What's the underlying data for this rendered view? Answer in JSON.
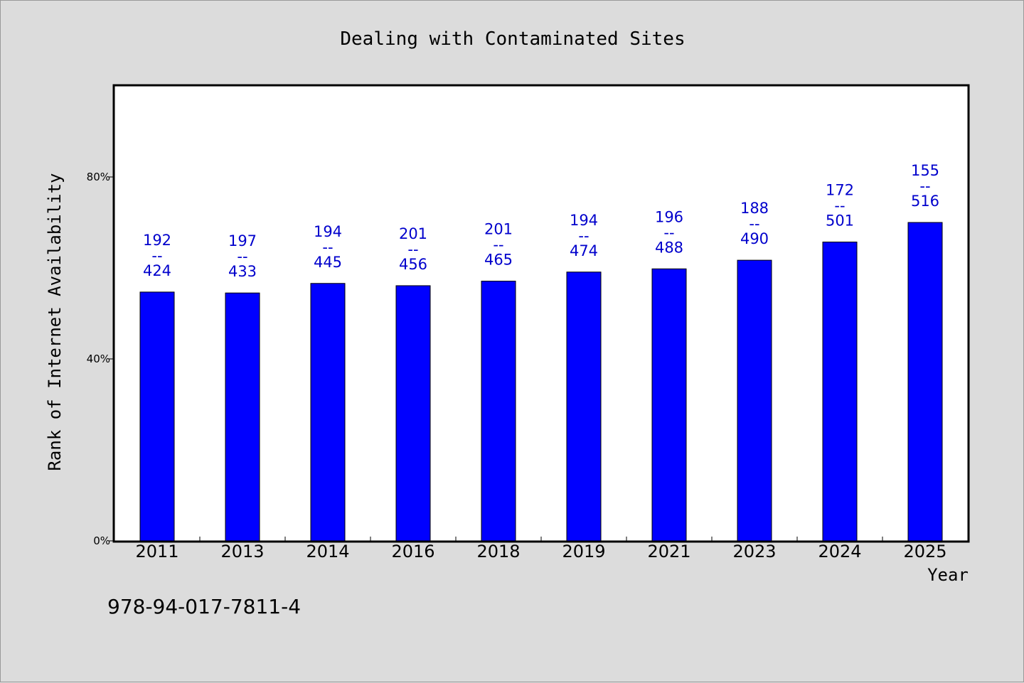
{
  "chart_data": {
    "type": "bar",
    "title": "Dealing with Contaminated Sites",
    "xlabel": "Year",
    "ylabel": "Rank of Internet Availability",
    "categories": [
      "2011",
      "2013",
      "2014",
      "2016",
      "2018",
      "2019",
      "2021",
      "2023",
      "2024",
      "2025"
    ],
    "values": [
      54.7,
      54.5,
      56.6,
      56.1,
      57.1,
      59.1,
      59.8,
      61.7,
      65.7,
      70.0
    ],
    "label_top": [
      "192",
      "197",
      "194",
      "201",
      "201",
      "194",
      "196",
      "188",
      "172",
      "155"
    ],
    "label_separator": "--",
    "label_bottom": [
      "424",
      "433",
      "445",
      "456",
      "465",
      "474",
      "488",
      "490",
      "501",
      "516"
    ],
    "ylim": [
      0,
      100
    ],
    "yticks": [
      0,
      40,
      80
    ],
    "ytick_labels": [
      "0%",
      "40%",
      "80%"
    ],
    "bar_color": "#0000ff",
    "label_color": "#0000cc",
    "grid": false
  },
  "footer": {
    "isbn": "978-94-017-7811-4"
  }
}
